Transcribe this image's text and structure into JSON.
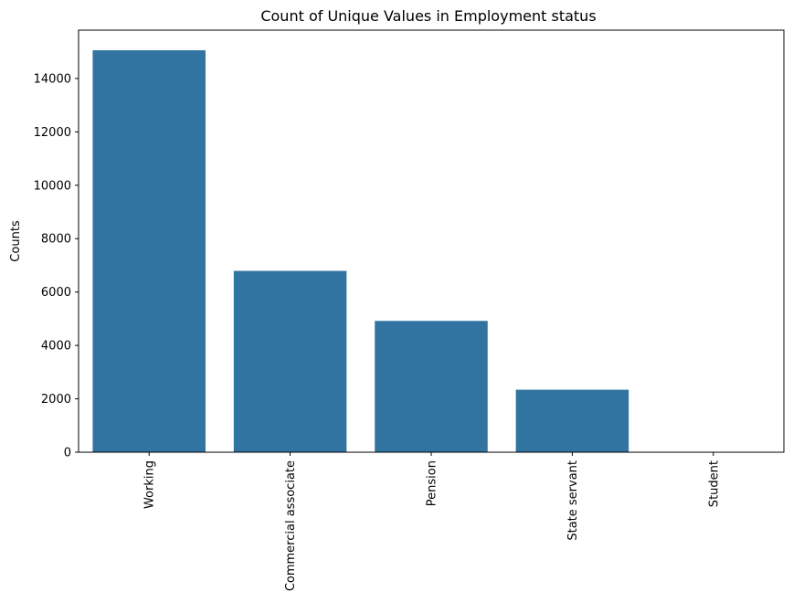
{
  "chart_data": {
    "type": "bar",
    "title": "Count of Unique Values in Employment status",
    "xlabel": "",
    "ylabel": "Counts",
    "categories": [
      "Working",
      "Commercial associate",
      "Pension",
      "State servant",
      "Student"
    ],
    "values": [
      15056,
      6793,
      4919,
      2341,
      10
    ],
    "ylim": [
      0,
      15810
    ],
    "yticks": [
      0,
      2000,
      4000,
      6000,
      8000,
      10000,
      12000,
      14000
    ],
    "bar_color": "#3274a1",
    "grid": false,
    "legend": "none",
    "xtick_rotation": "vertical"
  }
}
